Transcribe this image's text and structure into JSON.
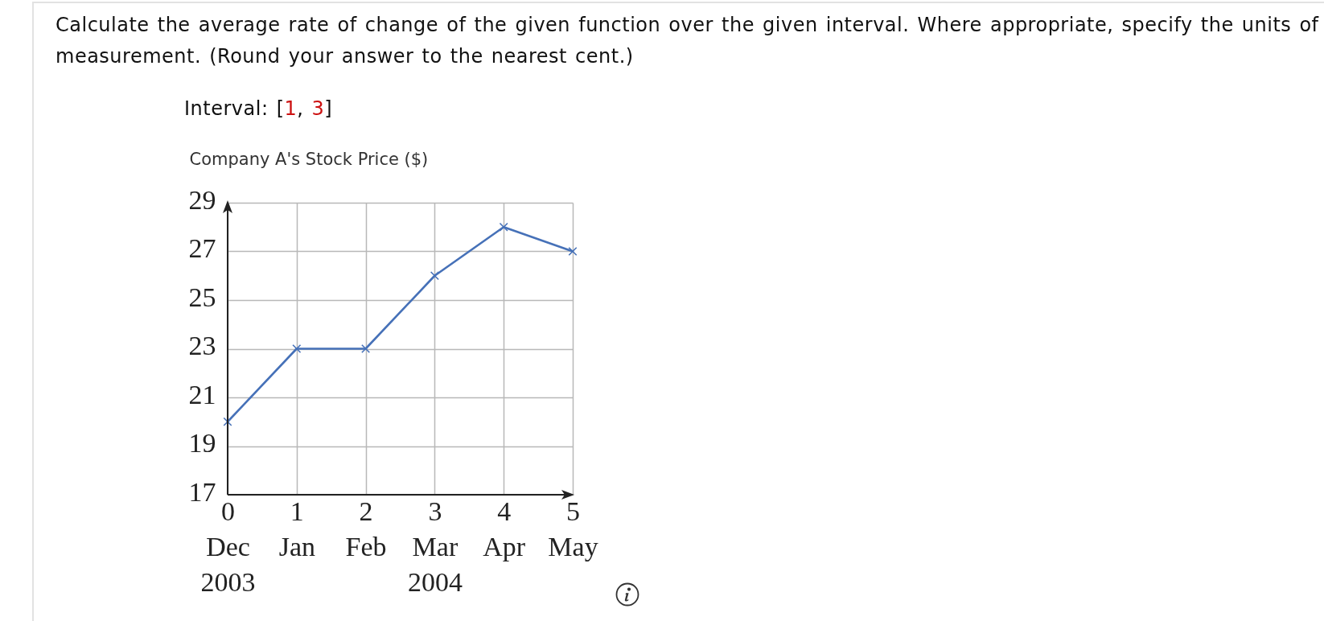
{
  "chart_data": {
    "type": "line",
    "ylabel": "Company A's Stock Price ($)",
    "annotations": [
      "Calculate the average rate of change of the given function over the given interval. Where appropriate, specify the units of measurement. (Round your answer to the nearest cent.)",
      "Interval: [1, 3]"
    ],
    "categories": [
      "0\nDec\n2003",
      "1\nJan",
      "2\nFeb",
      "3\nMar\n2004",
      "4\nApr",
      "5\nMay"
    ],
    "series": [
      {
        "color": "#4671b8",
        "values": [
          20,
          23,
          23,
          26,
          28,
          27
        ]
      }
    ],
    "ylim": [
      17,
      29
    ],
    "yticks": [
      17,
      19,
      21,
      23,
      25,
      27,
      29
    ],
    "grid": true,
    "marker": "cross",
    "line_style": "solid"
  }
}
